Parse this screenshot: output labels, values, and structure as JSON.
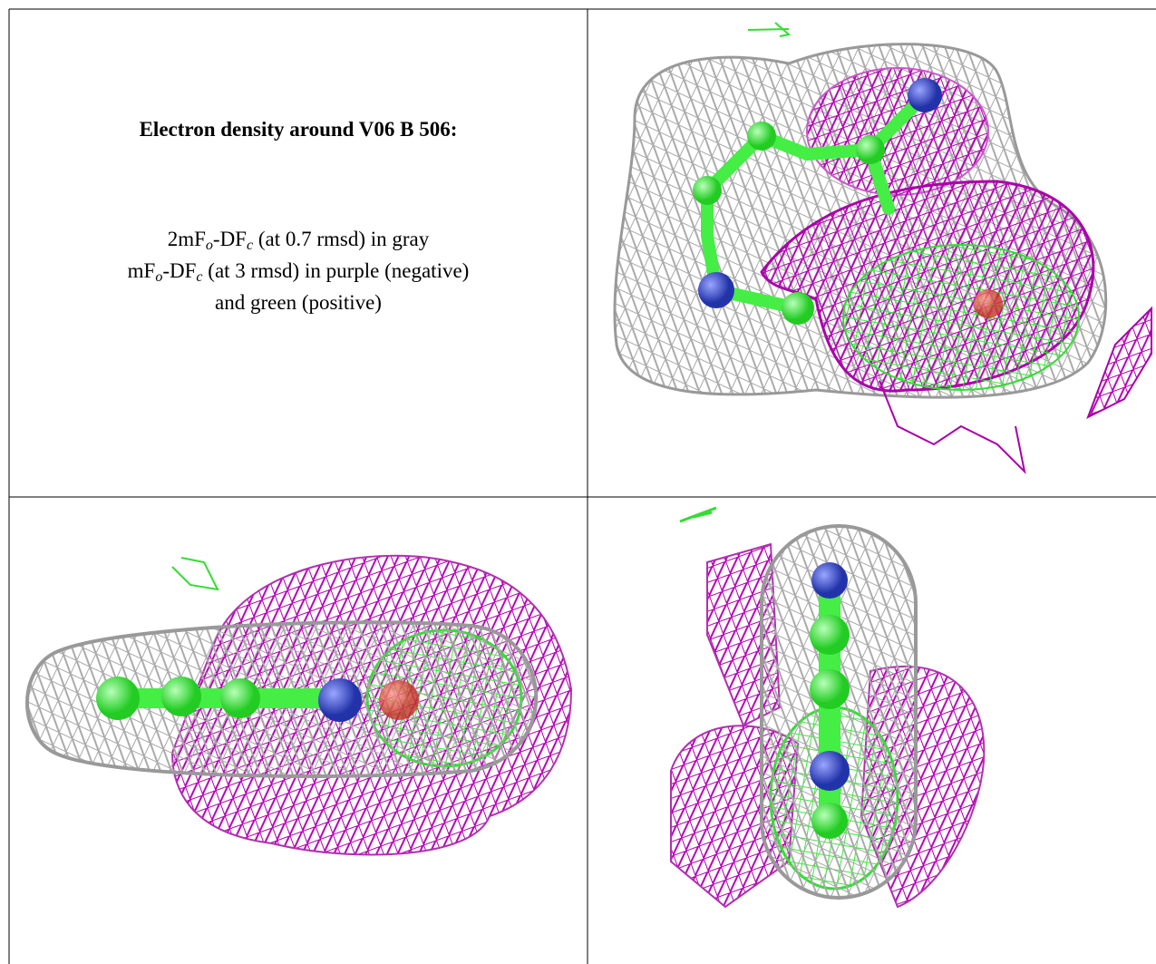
{
  "cell": {
    "title": "Electron density around V06 B 506:",
    "lines": [
      [
        {
          "t": "2mF"
        },
        {
          "sub": "o"
        },
        {
          "t": "-DF"
        },
        {
          "sub": "c"
        },
        {
          "t": " (at 0.7 rmsd) in gray"
        }
      ],
      [
        {
          "t": "mF"
        },
        {
          "sub": "o"
        },
        {
          "t": "-DF"
        },
        {
          "sub": "c"
        },
        {
          "t": " (at 3 rmsd) in purple (negative)"
        }
      ],
      [
        {
          "t": "and green (positive)"
        }
      ]
    ]
  }
}
